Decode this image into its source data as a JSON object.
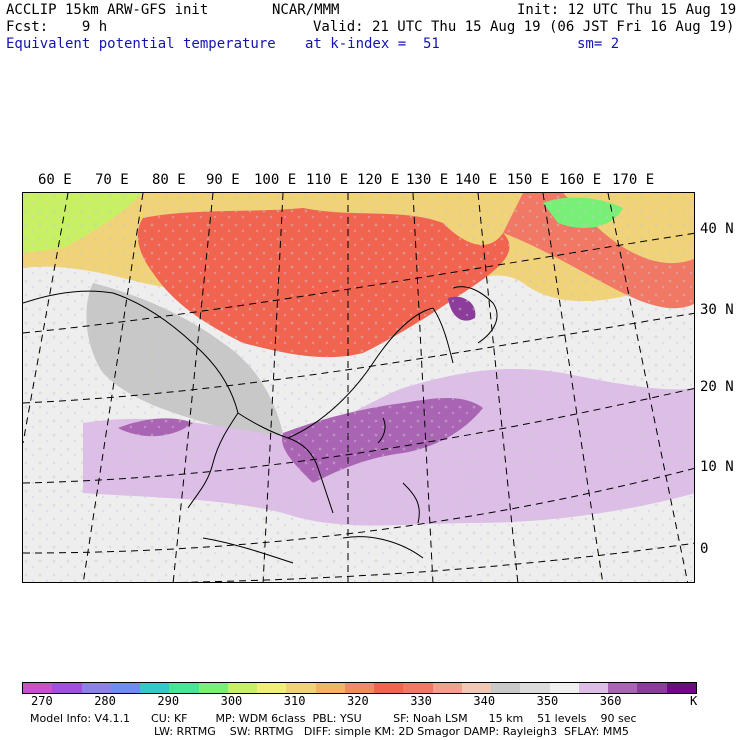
{
  "header": {
    "line1_left": "ACCLIP 15km ARW-GFS init",
    "line1_center": "NCAR/MMM",
    "line1_right": "Init: 12 UTC Thu 15 Aug 19",
    "line2_left": "Fcst:    9 h",
    "line2_right": "Valid: 21 UTC Thu 15 Aug 19 (06 JST Fri 16 Aug 19)",
    "line3_left": "Equivalent potential temperature",
    "line3_center": "at k-index =  51",
    "line3_right": "sm= 2"
  },
  "map": {
    "lon_labels": [
      "60 E",
      "70 E",
      "80 E",
      "90 E",
      "100 E",
      "110 E",
      "120 E",
      "130 E",
      "140 E",
      "150 E",
      "160 E",
      "170 E"
    ],
    "lat_labels": [
      "40 N",
      "30 N",
      "20 N",
      "10 N",
      "0"
    ]
  },
  "colorbar": {
    "colors": [
      "#c850c8",
      "#a050dc",
      "#8c82e6",
      "#6e8cf0",
      "#32c8c8",
      "#46e696",
      "#78f078",
      "#c8f064",
      "#f0f078",
      "#f0d278",
      "#f0b464",
      "#f08c64",
      "#f06450",
      "#f07864",
      "#f0a08c",
      "#f0c8b4",
      "#c8c8c8",
      "#dcdcdc",
      "#f0f0f0",
      "#dcbee6",
      "#aa64b4",
      "#8c3c9a",
      "#6e0a82"
    ],
    "tick_labels": [
      "270",
      "280",
      "290",
      "300",
      "310",
      "320",
      "330",
      "340",
      "350",
      "360"
    ],
    "unit": "K"
  },
  "footer": {
    "line1": "Model Info: V4.1.1      CU: KF        MP: WDM 6class  PBL: YSU         SF: Noah LSM      15 km    51 levels    90 sec",
    "line2": "LW: RRTMG    SW: RRTMG   DIFF: simple KM: 2D Smagor DAMP: Rayleigh3  SFLAY: MM5"
  }
}
